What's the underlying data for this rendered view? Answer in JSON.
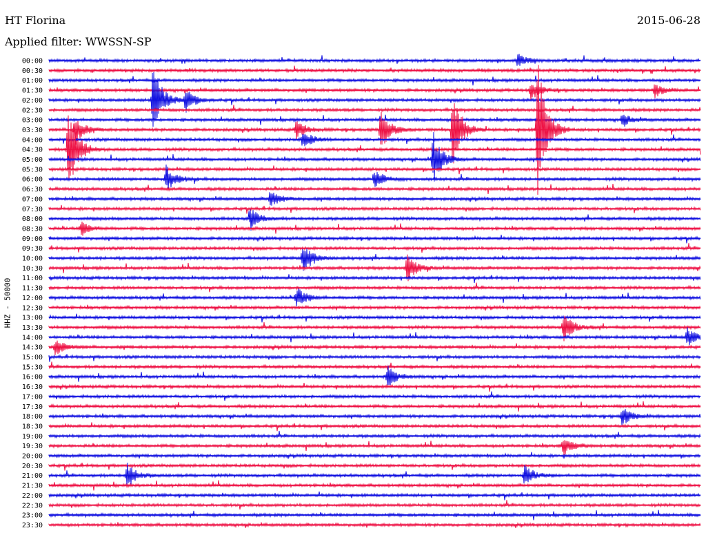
{
  "header": {
    "station": "HT Florina",
    "date": "2015-06-28",
    "filter_label": "Applied filter: WWSSN-SP"
  },
  "chart_data": {
    "type": "line",
    "title": "HT Florina",
    "date": "2015-06-28",
    "subtitle": "Applied filter: WWSSN-SP",
    "ylabel": "HHZ - 50000",
    "rows": [
      "00:00",
      "00:30",
      "01:00",
      "01:30",
      "02:00",
      "02:30",
      "03:00",
      "03:30",
      "04:00",
      "04:30",
      "05:00",
      "05:30",
      "06:00",
      "06:30",
      "07:00",
      "07:30",
      "08:00",
      "08:30",
      "09:00",
      "09:30",
      "10:00",
      "10:30",
      "11:00",
      "11:30",
      "12:00",
      "12:30",
      "13:00",
      "13:30",
      "14:00",
      "14:30",
      "15:00",
      "15:30",
      "16:00",
      "16:30",
      "17:00",
      "17:30",
      "18:00",
      "18:30",
      "19:00",
      "19:30",
      "20:00",
      "20:30",
      "21:00",
      "21:30",
      "22:00",
      "22:30",
      "23:00",
      "23:30"
    ],
    "colors": [
      "#1010e0",
      "#ee1144"
    ],
    "events": [
      {
        "row": "00:00",
        "t": 0.72,
        "amp": 10
      },
      {
        "row": "01:30",
        "t": 0.74,
        "amp": 14
      },
      {
        "row": "01:30",
        "t": 0.93,
        "amp": 10
      },
      {
        "row": "02:00",
        "t": 0.16,
        "amp": 60
      },
      {
        "row": "02:00",
        "t": 0.21,
        "amp": 18
      },
      {
        "row": "03:00",
        "t": 0.88,
        "amp": 9
      },
      {
        "row": "03:30",
        "t": 0.04,
        "amp": 22
      },
      {
        "row": "03:30",
        "t": 0.38,
        "amp": 14
      },
      {
        "row": "03:30",
        "t": 0.51,
        "amp": 30
      },
      {
        "row": "03:30",
        "t": 0.62,
        "amp": 60
      },
      {
        "row": "03:30",
        "t": 0.75,
        "amp": 110
      },
      {
        "row": "04:00",
        "t": 0.39,
        "amp": 14
      },
      {
        "row": "04:30",
        "t": 0.03,
        "amp": 70
      },
      {
        "row": "05:00",
        "t": 0.59,
        "amp": 40
      },
      {
        "row": "06:00",
        "t": 0.18,
        "amp": 20
      },
      {
        "row": "06:00",
        "t": 0.5,
        "amp": 14
      },
      {
        "row": "07:00",
        "t": 0.34,
        "amp": 12
      },
      {
        "row": "08:00",
        "t": 0.31,
        "amp": 16
      },
      {
        "row": "08:30",
        "t": 0.05,
        "amp": 10
      },
      {
        "row": "10:00",
        "t": 0.39,
        "amp": 24
      },
      {
        "row": "10:30",
        "t": 0.55,
        "amp": 22
      },
      {
        "row": "12:00",
        "t": 0.38,
        "amp": 16
      },
      {
        "row": "13:30",
        "t": 0.79,
        "amp": 22
      },
      {
        "row": "14:00",
        "t": 0.98,
        "amp": 14
      },
      {
        "row": "14:30",
        "t": 0.01,
        "amp": 12
      },
      {
        "row": "16:00",
        "t": 0.52,
        "amp": 16
      },
      {
        "row": "18:00",
        "t": 0.88,
        "amp": 14
      },
      {
        "row": "19:30",
        "t": 0.79,
        "amp": 14
      },
      {
        "row": "21:00",
        "t": 0.12,
        "amp": 18
      },
      {
        "row": "21:00",
        "t": 0.73,
        "amp": 16
      }
    ]
  }
}
